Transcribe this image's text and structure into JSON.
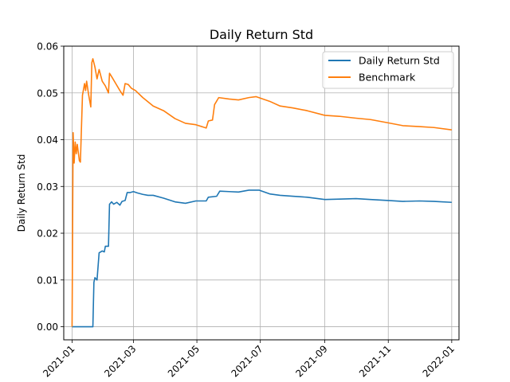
{
  "chart_data": {
    "type": "line",
    "title": "Daily Return Std",
    "ylabel": "Daily Return Std",
    "xlabel": "",
    "x_ticks": [
      "2021-01",
      "2021-03",
      "2021-05",
      "2021-07",
      "2021-09",
      "2021-11",
      "2022-01"
    ],
    "y_ticks": [
      "0.00",
      "0.01",
      "0.02",
      "0.03",
      "0.04",
      "0.05",
      "0.06"
    ],
    "xlim": [
      "2020-12-24",
      "2022-01-08"
    ],
    "ylim": [
      -0.0028,
      0.06
    ],
    "grid": true,
    "legend_position": "top-right",
    "series": [
      {
        "name": "Daily Return Std",
        "color": "#1f77b4",
        "points": [
          [
            "2021-01-01",
            0.0
          ],
          [
            "2021-01-05",
            0.0
          ],
          [
            "2021-01-10",
            0.0
          ],
          [
            "2021-01-15",
            0.0
          ],
          [
            "2021-01-21",
            0.0
          ],
          [
            "2021-01-22",
            0.0095
          ],
          [
            "2021-01-23",
            0.0105
          ],
          [
            "2021-01-25",
            0.01
          ],
          [
            "2021-01-27",
            0.0158
          ],
          [
            "2021-01-30",
            0.0162
          ],
          [
            "2021-02-01",
            0.016
          ],
          [
            "2021-02-02",
            0.0172
          ],
          [
            "2021-02-05",
            0.0172
          ],
          [
            "2021-02-06",
            0.0262
          ],
          [
            "2021-02-08",
            0.0267
          ],
          [
            "2021-02-10",
            0.0262
          ],
          [
            "2021-02-13",
            0.0266
          ],
          [
            "2021-02-16",
            0.026
          ],
          [
            "2021-02-18",
            0.0268
          ],
          [
            "2021-02-21",
            0.027
          ],
          [
            "2021-02-23",
            0.0287
          ],
          [
            "2021-02-26",
            0.0287
          ],
          [
            "2021-03-01",
            0.0289
          ],
          [
            "2021-03-05",
            0.0286
          ],
          [
            "2021-03-10",
            0.0283
          ],
          [
            "2021-03-15",
            0.0281
          ],
          [
            "2021-03-20",
            0.0281
          ],
          [
            "2021-03-30",
            0.0275
          ],
          [
            "2021-04-10",
            0.0267
          ],
          [
            "2021-04-20",
            0.0264
          ],
          [
            "2021-04-30",
            0.0269
          ],
          [
            "2021-05-10",
            0.0269
          ],
          [
            "2021-05-12",
            0.0277
          ],
          [
            "2021-05-20",
            0.0279
          ],
          [
            "2021-05-23",
            0.029
          ],
          [
            "2021-06-01",
            0.0289
          ],
          [
            "2021-06-10",
            0.0288
          ],
          [
            "2021-06-20",
            0.0292
          ],
          [
            "2021-06-30",
            0.0292
          ],
          [
            "2021-07-10",
            0.0284
          ],
          [
            "2021-07-20",
            0.0281
          ],
          [
            "2021-08-01",
            0.0279
          ],
          [
            "2021-08-15",
            0.0277
          ],
          [
            "2021-09-01",
            0.0272
          ],
          [
            "2021-09-15",
            0.0273
          ],
          [
            "2021-10-01",
            0.0274
          ],
          [
            "2021-10-15",
            0.0272
          ],
          [
            "2021-11-01",
            0.027
          ],
          [
            "2021-11-15",
            0.0268
          ],
          [
            "2021-12-01",
            0.0269
          ],
          [
            "2021-12-15",
            0.0268
          ],
          [
            "2022-01-01",
            0.0266
          ]
        ]
      },
      {
        "name": "Benchmark",
        "color": "#ff7f0e",
        "points": [
          [
            "2021-01-01",
            0.0
          ],
          [
            "2021-01-02",
            0.0415
          ],
          [
            "2021-01-03",
            0.035
          ],
          [
            "2021-01-04",
            0.0395
          ],
          [
            "2021-01-05",
            0.037
          ],
          [
            "2021-01-06",
            0.039
          ],
          [
            "2021-01-08",
            0.0355
          ],
          [
            "2021-01-09",
            0.0352
          ],
          [
            "2021-01-11",
            0.0495
          ],
          [
            "2021-01-13",
            0.052
          ],
          [
            "2021-01-14",
            0.0505
          ],
          [
            "2021-01-15",
            0.0525
          ],
          [
            "2021-01-17",
            0.0495
          ],
          [
            "2021-01-19",
            0.047
          ],
          [
            "2021-01-20",
            0.0565
          ],
          [
            "2021-01-21",
            0.0573
          ],
          [
            "2021-01-23",
            0.0555
          ],
          [
            "2021-01-25",
            0.053
          ],
          [
            "2021-01-27",
            0.055
          ],
          [
            "2021-01-30",
            0.0525
          ],
          [
            "2021-02-02",
            0.0515
          ],
          [
            "2021-02-05",
            0.05
          ],
          [
            "2021-02-06",
            0.0542
          ],
          [
            "2021-02-08",
            0.0535
          ],
          [
            "2021-02-12",
            0.052
          ],
          [
            "2021-02-16",
            0.0505
          ],
          [
            "2021-02-19",
            0.0495
          ],
          [
            "2021-02-21",
            0.052
          ],
          [
            "2021-02-24",
            0.0518
          ],
          [
            "2021-02-27",
            0.051
          ],
          [
            "2021-03-03",
            0.0505
          ],
          [
            "2021-03-10",
            0.049
          ],
          [
            "2021-03-20",
            0.0472
          ],
          [
            "2021-03-30",
            0.0462
          ],
          [
            "2021-04-10",
            0.0445
          ],
          [
            "2021-04-20",
            0.0435
          ],
          [
            "2021-04-30",
            0.0432
          ],
          [
            "2021-05-10",
            0.0425
          ],
          [
            "2021-05-12",
            0.044
          ],
          [
            "2021-05-16",
            0.0442
          ],
          [
            "2021-05-18",
            0.0475
          ],
          [
            "2021-05-22",
            0.049
          ],
          [
            "2021-06-01",
            0.0487
          ],
          [
            "2021-06-10",
            0.0485
          ],
          [
            "2021-06-20",
            0.049
          ],
          [
            "2021-06-27",
            0.0492
          ],
          [
            "2021-07-10",
            0.0482
          ],
          [
            "2021-07-20",
            0.0472
          ],
          [
            "2021-08-01",
            0.0468
          ],
          [
            "2021-08-15",
            0.0462
          ],
          [
            "2021-09-01",
            0.0452
          ],
          [
            "2021-09-15",
            0.045
          ],
          [
            "2021-10-01",
            0.0446
          ],
          [
            "2021-10-15",
            0.0443
          ],
          [
            "2021-11-01",
            0.0436
          ],
          [
            "2021-11-15",
            0.043
          ],
          [
            "2021-12-01",
            0.0428
          ],
          [
            "2021-12-15",
            0.0426
          ],
          [
            "2022-01-01",
            0.0421
          ]
        ]
      }
    ]
  }
}
